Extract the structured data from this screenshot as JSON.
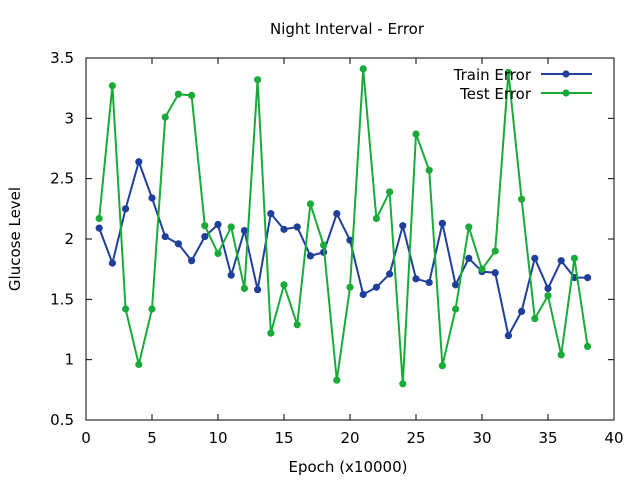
{
  "chart_data": {
    "type": "line",
    "title": "Night Interval - Error",
    "xlabel": "Epoch (x10000)",
    "ylabel": "Glucose Level",
    "xlim": [
      0,
      40
    ],
    "ylim": [
      0.5,
      3.5
    ],
    "x_ticks": [
      "0",
      "5",
      "10",
      "15",
      "20",
      "25",
      "30",
      "35",
      "40"
    ],
    "y_ticks": [
      "0.5",
      "1",
      "1.5",
      "2",
      "2.5",
      "3",
      "3.5"
    ],
    "grid": false,
    "legend_position": "top-right",
    "x": [
      1,
      2,
      3,
      4,
      5,
      6,
      7,
      8,
      9,
      10,
      11,
      12,
      13,
      14,
      15,
      16,
      17,
      18,
      19,
      20,
      21,
      22,
      23,
      24,
      25,
      26,
      27,
      28,
      29,
      30,
      31,
      32,
      33,
      34,
      35,
      36,
      37,
      38
    ],
    "series": [
      {
        "name": "Train Error",
        "color": "#1f3f9a",
        "values": [
          2.09,
          1.8,
          2.25,
          2.64,
          2.34,
          2.02,
          1.96,
          1.82,
          2.02,
          2.12,
          1.7,
          2.07,
          1.58,
          2.21,
          2.08,
          2.1,
          1.86,
          1.89,
          2.21,
          1.99,
          1.54,
          1.6,
          1.71,
          2.11,
          1.67,
          1.64,
          2.13,
          1.62,
          1.84,
          1.73,
          1.72,
          1.2,
          1.4,
          1.84,
          1.59,
          1.82,
          1.68,
          1.68
        ]
      },
      {
        "name": "Test Error",
        "color": "#1aaa3a",
        "values": [
          2.17,
          3.27,
          1.42,
          0.96,
          1.42,
          3.01,
          3.2,
          3.19,
          2.11,
          1.88,
          2.1,
          1.59,
          3.32,
          1.22,
          1.62,
          1.29,
          2.29,
          1.95,
          0.83,
          1.6,
          3.41,
          2.17,
          2.39,
          0.8,
          2.87,
          2.57,
          0.95,
          1.42,
          2.1,
          1.75,
          1.9,
          3.38,
          2.33,
          1.34,
          1.53,
          1.04,
          1.84,
          1.11
        ]
      }
    ]
  }
}
